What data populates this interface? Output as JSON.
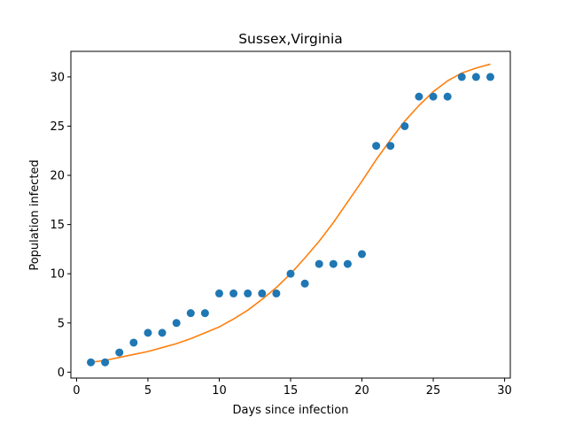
{
  "chart_data": {
    "type": "scatter",
    "title": "Sussex,Virginia",
    "xlabel": "Days since infection",
    "ylabel": "Population infected",
    "xlim": [
      -0.4,
      30.4
    ],
    "ylim": [
      -0.6,
      32.6
    ],
    "xticks": [
      0,
      5,
      10,
      15,
      20,
      25,
      30
    ],
    "yticks": [
      0,
      5,
      10,
      15,
      20,
      25,
      30
    ],
    "grid": false,
    "series": [
      {
        "type": "scatter",
        "color": "#1f77b4",
        "x": [
          1,
          2,
          3,
          4,
          5,
          6,
          7,
          8,
          9,
          10,
          11,
          12,
          13,
          14,
          15,
          16,
          17,
          18,
          19,
          20,
          21,
          22,
          23,
          24,
          25,
          26,
          27,
          28,
          29
        ],
        "y": [
          1,
          1,
          2,
          3,
          4,
          4,
          5,
          6,
          6,
          8,
          8,
          8,
          8,
          8,
          10,
          9,
          11,
          11,
          11,
          12,
          23,
          23,
          25,
          28,
          28,
          28,
          30,
          30,
          30
        ]
      },
      {
        "type": "line",
        "color": "#ff7f0e",
        "x": [
          1,
          2,
          3,
          4,
          5,
          6,
          7,
          8,
          9,
          10,
          11,
          12,
          13,
          14,
          15,
          16,
          17,
          18,
          19,
          20,
          21,
          22,
          23,
          24,
          25,
          26,
          27,
          28,
          29
        ],
        "y": [
          1.0,
          1.2,
          1.5,
          1.8,
          2.1,
          2.5,
          2.9,
          3.4,
          4.0,
          4.6,
          5.4,
          6.3,
          7.4,
          8.6,
          10.0,
          11.6,
          13.3,
          15.2,
          17.3,
          19.4,
          21.6,
          23.6,
          25.5,
          27.1,
          28.5,
          29.6,
          30.4,
          30.9,
          31.3
        ]
      }
    ]
  }
}
